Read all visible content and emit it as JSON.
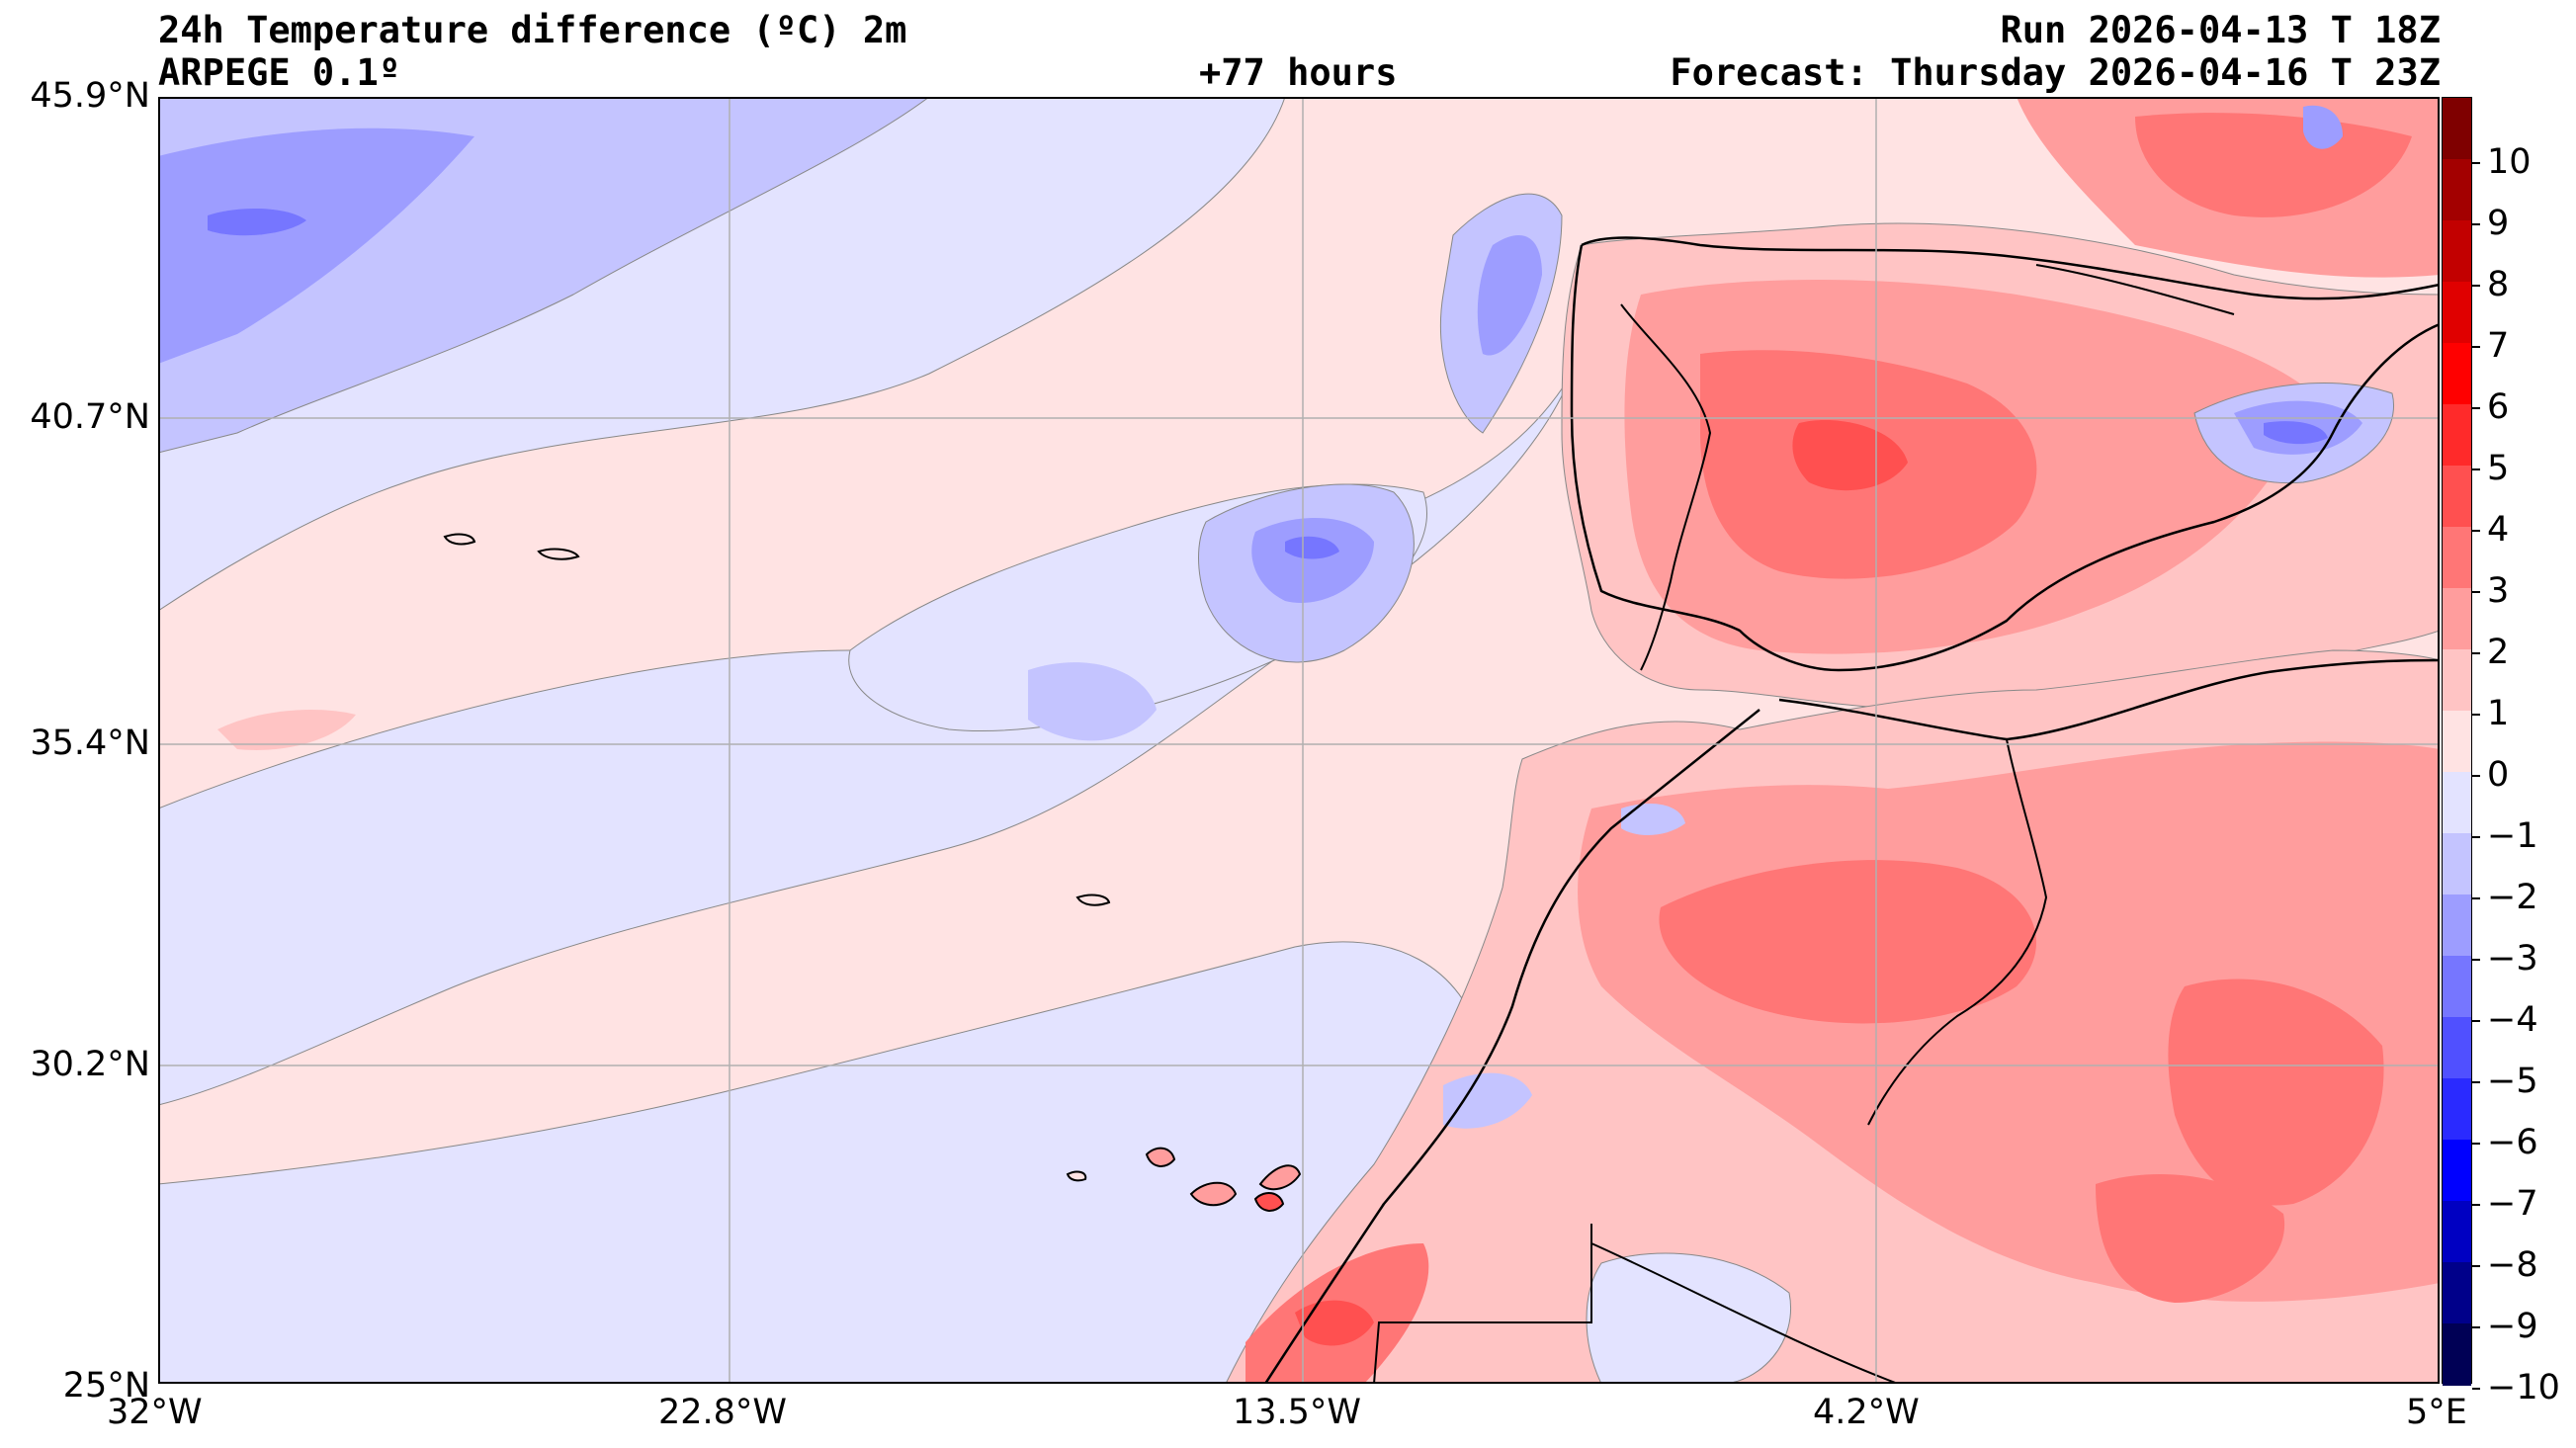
{
  "header": {
    "title": "24h Temperature difference (ºC) 2m",
    "model": "ARPEGE 0.1º",
    "lead": "+77 hours",
    "run": "Run 2026-04-13 T 18Z",
    "forecast": "Forecast: Thursday 2026-04-16 T 23Z"
  },
  "axes": {
    "lat_labels": [
      "45.9°N",
      "40.7°N",
      "35.4°N",
      "30.2°N",
      "25°N"
    ],
    "lon_labels": [
      "32°W",
      "22.8°W",
      "13.5°W",
      "4.2°W",
      "5°E"
    ],
    "lat_range": [
      25,
      45.9
    ],
    "lon_range": [
      -32,
      5
    ],
    "gridlines": true
  },
  "colorbar": {
    "labels": [
      "10",
      "9",
      "8",
      "7",
      "6",
      "5",
      "4",
      "3",
      "2",
      "1",
      "0",
      "−1",
      "−2",
      "−3",
      "−4",
      "−5",
      "−6",
      "−7",
      "−8",
      "−9",
      "−10"
    ],
    "colors": [
      "#7f0000",
      "#a30000",
      "#c20000",
      "#e00000",
      "#ff0000",
      "#ff2a2a",
      "#ff5050",
      "#ff7676",
      "#ff9d9d",
      "#ffc4c4",
      "#ffe3e3",
      "#e3e3ff",
      "#c4c4ff",
      "#9d9dff",
      "#7676ff",
      "#5050ff",
      "#2a2aff",
      "#0000ff",
      "#0000c2",
      "#00008a",
      "#000055"
    ]
  },
  "colors": {
    "ocean_warm": "#ffe3e3",
    "ocean_cool": "#e3e3ff",
    "cool_1": "#c4c4ff",
    "cool_2": "#9d9dff",
    "cool_3": "#7676ff",
    "warm_1": "#ffc4c4",
    "warm_2": "#ff9d9d",
    "warm_3": "#ff7676",
    "warm_4": "#ff5050",
    "coastline": "#000000",
    "grid": "#b0b0b0"
  }
}
